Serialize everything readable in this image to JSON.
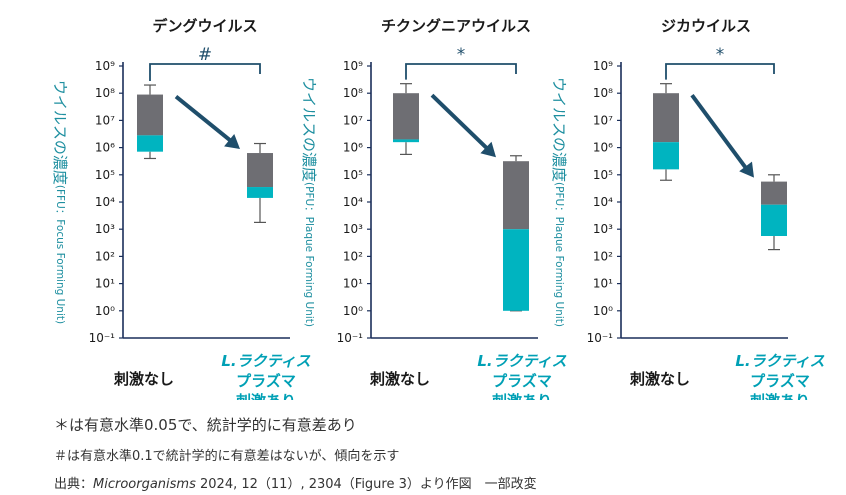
{
  "chart_data": [
    {
      "type": "boxplot",
      "title": "デングウイルス",
      "ylabel": "ウイルスの濃度",
      "ylabel_unit": "(FFU：Focus Forming Unit)",
      "yscale": "log10",
      "ylim_exp": [
        -1,
        9
      ],
      "ytick_labels": [
        "10⁻¹",
        "10⁰",
        "10¹",
        "10²",
        "10³",
        "10⁴",
        "10⁵",
        "10⁶",
        "10⁷",
        "10⁸",
        "10⁹"
      ],
      "categories": [
        "刺激なし",
        "L.ラクティス プラズマ 刺激あり"
      ],
      "category_lines": [
        [
          "刺激なし"
        ],
        [
          "L.ラクティス",
          "プラズマ",
          "刺激あり"
        ]
      ],
      "boxes": [
        {
          "whisker_low": 5.6,
          "q1": 5.85,
          "median": 6.45,
          "q3": 7.95,
          "whisker_high": 8.3
        },
        {
          "whisker_low": 3.25,
          "q1": 4.15,
          "median": 4.55,
          "q3": 5.8,
          "whisker_high": 6.15
        }
      ],
      "significance": "#"
    },
    {
      "type": "boxplot",
      "title": "チクングニアウイルス",
      "ylabel": "ウイルスの濃度",
      "ylabel_unit": "(PFU：Plaque Forming Unit)",
      "yscale": "log10",
      "ylim_exp": [
        -1,
        9
      ],
      "ytick_labels": [
        "10⁻¹",
        "10⁰",
        "10¹",
        "10²",
        "10³",
        "10⁴",
        "10⁵",
        "10⁶",
        "10⁷",
        "10⁸",
        "10⁹"
      ],
      "categories": [
        "刺激なし",
        "L.ラクティス プラズマ 刺激あり"
      ],
      "category_lines": [
        [
          "刺激なし"
        ],
        [
          "L.ラクティス",
          "プラズマ",
          "刺激あり"
        ]
      ],
      "boxes": [
        {
          "whisker_low": 5.75,
          "q1": 6.2,
          "median": 6.3,
          "q3": 8.0,
          "whisker_high": 8.35
        },
        {
          "whisker_low": 0.0,
          "q1": 0.0,
          "median": 3.0,
          "q3": 5.5,
          "whisker_high": 5.7
        }
      ],
      "significance": "*"
    },
    {
      "type": "boxplot",
      "title": "ジカウイルス",
      "ylabel": "ウイルスの濃度",
      "ylabel_unit": "(PFU：Plaque Forming Unit)",
      "yscale": "log10",
      "ylim_exp": [
        -1,
        9
      ],
      "ytick_labels": [
        "10⁻¹",
        "10⁰",
        "10¹",
        "10²",
        "10³",
        "10⁴",
        "10⁵",
        "10⁶",
        "10⁷",
        "10⁸",
        "10⁹"
      ],
      "categories": [
        "刺激なし",
        "L.ラクティス プラズマ 刺激あり"
      ],
      "category_lines": [
        [
          "刺激なし"
        ],
        [
          "L.ラクティス",
          "プラズマ",
          "刺激あり"
        ]
      ],
      "boxes": [
        {
          "whisker_low": 4.8,
          "q1": 5.2,
          "median": 6.2,
          "q3": 8.0,
          "whisker_high": 8.35
        },
        {
          "whisker_low": 2.25,
          "q1": 2.75,
          "median": 3.9,
          "q3": 4.75,
          "whisker_high": 5.0
        }
      ],
      "significance": "*"
    }
  ],
  "colors": {
    "box_upper": "#6e6e73",
    "box_lower": "#00b4c0",
    "axis": "#1a2e5a",
    "arrow": "#1f4e6b",
    "bracket": "#1f4e6b",
    "title": "#1a1a1a",
    "ylabel": "#1e8fa0",
    "category_treated": "#00a0b5",
    "category_control": "#1a1a1a"
  },
  "notes": {
    "note1": "＊は有意水準0.05で、統計学的に有意差あり",
    "note2": "＃は有意水準0.1で統計学的に有意差はないが、傾向を示す"
  },
  "source": {
    "prefix": "出典：",
    "journal": "Microorganisms",
    "suffix": "  2024, 12（11）, 2304（Figure 3）より作図　一部改変"
  }
}
